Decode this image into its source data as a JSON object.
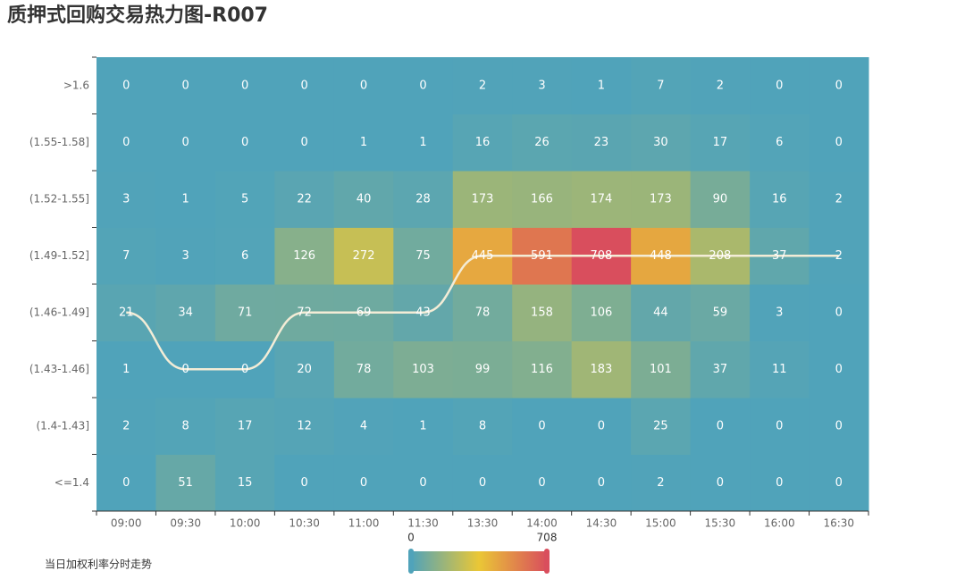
{
  "chart_data": {
    "type": "heatmap",
    "title": "质押式回购交易热力图-R007",
    "x": [
      "09:00",
      "09:30",
      "10:00",
      "10:30",
      "11:00",
      "11:30",
      "13:30",
      "14:00",
      "14:30",
      "15:00",
      "15:30",
      "16:00",
      "16:30"
    ],
    "y_categories": [
      "<=1.4",
      "(1.4-1.43]",
      "(1.43-1.46]",
      "(1.46-1.49]",
      "(1.49-1.52]",
      "(1.52-1.55]",
      "(1.55-1.58]",
      ">1.6"
    ],
    "matrix": [
      [
        0,
        51,
        15,
        0,
        0,
        0,
        0,
        0,
        0,
        2,
        0,
        0,
        0
      ],
      [
        2,
        8,
        17,
        12,
        4,
        1,
        8,
        0,
        0,
        25,
        0,
        0,
        0
      ],
      [
        1,
        0,
        0,
        20,
        78,
        103,
        99,
        116,
        183,
        101,
        37,
        11,
        0
      ],
      [
        21,
        34,
        71,
        72,
        69,
        43,
        78,
        158,
        106,
        44,
        59,
        3,
        0
      ],
      [
        7,
        3,
        6,
        126,
        272,
        75,
        445,
        591,
        708,
        448,
        208,
        37,
        2
      ],
      [
        3,
        1,
        5,
        22,
        40,
        28,
        173,
        166,
        174,
        173,
        90,
        16,
        2
      ],
      [
        0,
        0,
        0,
        0,
        1,
        1,
        16,
        26,
        23,
        30,
        17,
        6,
        0
      ],
      [
        0,
        0,
        0,
        0,
        0,
        0,
        2,
        3,
        1,
        7,
        2,
        0,
        0
      ]
    ],
    "line": {
      "name": "当日加权利率分时走势",
      "color": "#f3ecd6",
      "values": [
        3,
        2,
        2,
        3,
        3,
        3,
        4,
        4,
        4,
        4,
        4,
        4,
        4
      ]
    },
    "visual_map": {
      "range": [
        0,
        708
      ],
      "colors": [
        "#50a3ba",
        "#eac736",
        "#d94e5d"
      ]
    }
  }
}
